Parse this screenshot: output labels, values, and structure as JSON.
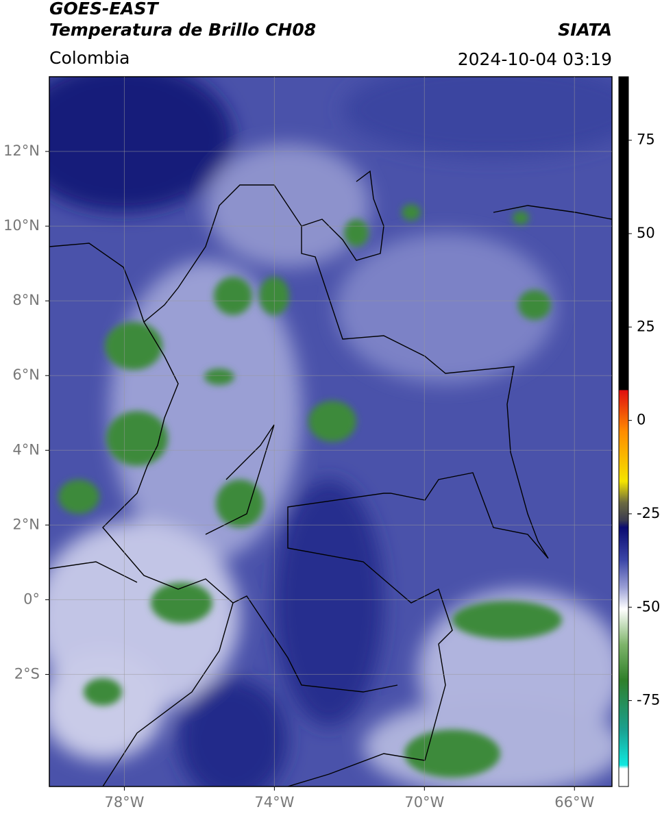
{
  "map": {
    "title": "GOES-EAST",
    "subtitle": "Temperatura de Brillo CH08",
    "source": "SIATA",
    "region": "Colombia",
    "datetime": "2024-10-04 03:19",
    "lonlim": [
      -80,
      -65
    ],
    "latlim": [
      -5,
      14
    ],
    "lonticks": [
      {
        "value": -78,
        "label": "78°W"
      },
      {
        "value": -74,
        "label": "74°W"
      },
      {
        "value": -70,
        "label": "70°W"
      },
      {
        "value": -66,
        "label": "66°W"
      }
    ],
    "latticks": [
      {
        "value": 12,
        "label": "12°N"
      },
      {
        "value": 10,
        "label": "10°N"
      },
      {
        "value": 8,
        "label": "8°N"
      },
      {
        "value": 6,
        "label": "6°N"
      },
      {
        "value": 4,
        "label": "4°N"
      },
      {
        "value": 2,
        "label": "2°N"
      },
      {
        "value": 0,
        "label": "0°"
      },
      {
        "value": -2,
        "label": "2°S"
      }
    ],
    "grid": true,
    "colorbar": {
      "lim": [
        -98,
        92
      ],
      "ticks": [
        75,
        50,
        25,
        0,
        -25,
        -50,
        -75
      ]
    }
  }
}
